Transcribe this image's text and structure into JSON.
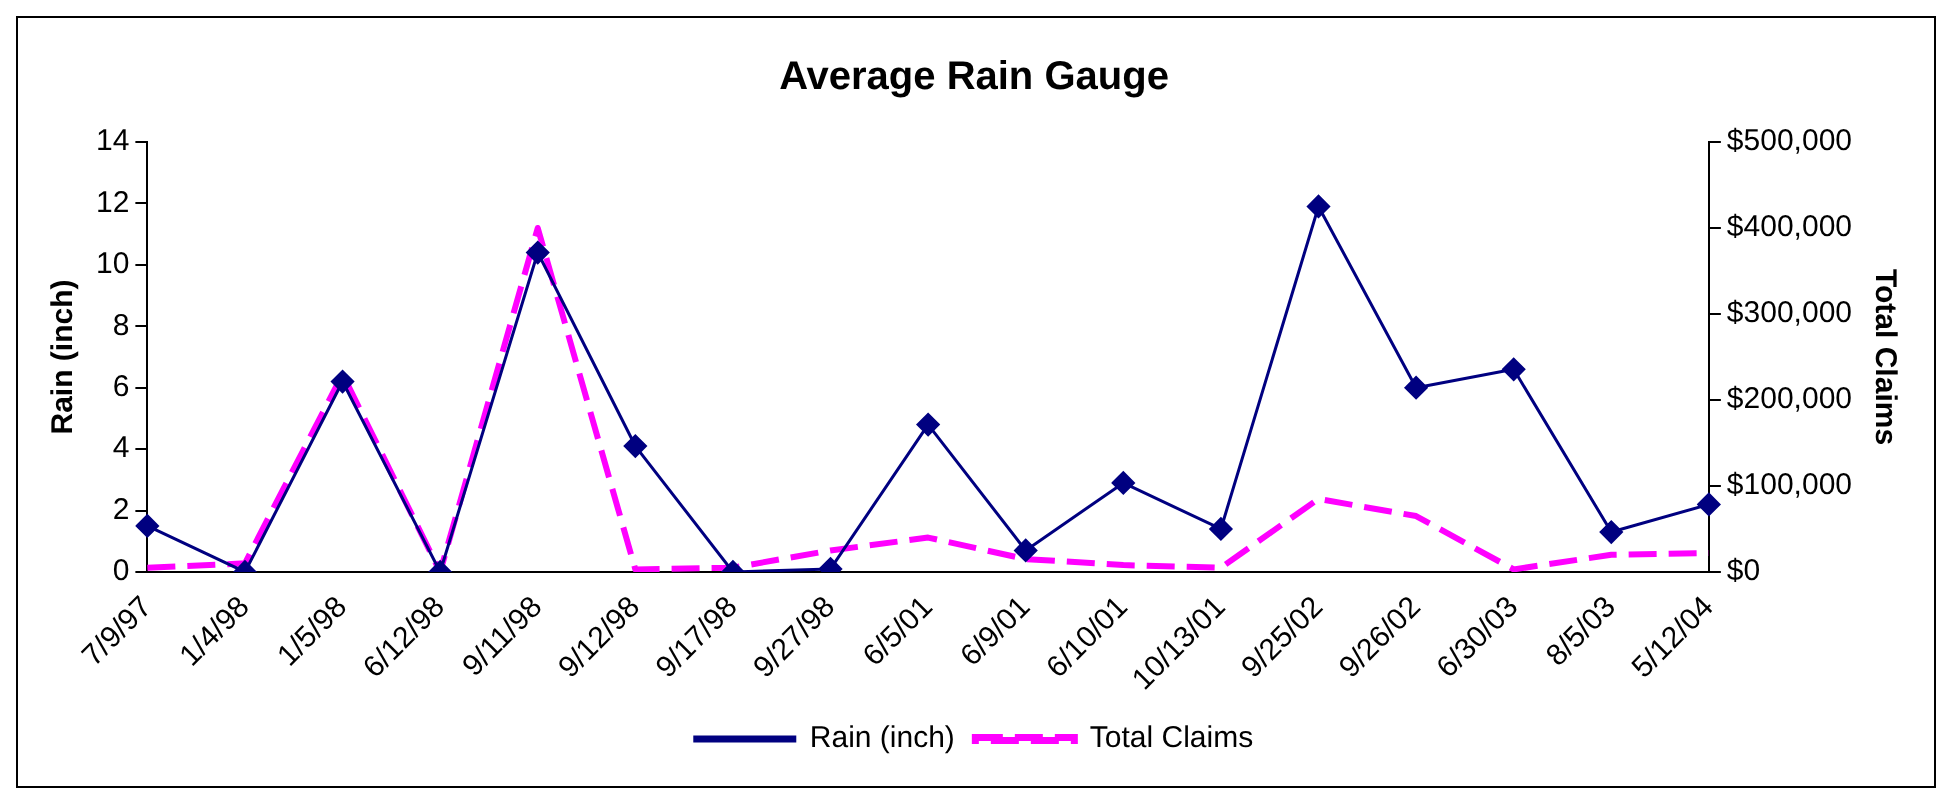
{
  "chart_data": {
    "type": "line",
    "title": "Average Rain Gauge",
    "ylabel": "Rain (inch)",
    "y2label": "Total Claims",
    "categories": [
      "7/9/97",
      "1/4/98",
      "1/5/98",
      "6/12/98",
      "9/11/98",
      "9/12/98",
      "9/17/98",
      "9/27/98",
      "6/5/01",
      "6/9/01",
      "6/10/01",
      "10/13/01",
      "9/25/02",
      "9/26/02",
      "6/30/03",
      "8/5/03",
      "5/12/04"
    ],
    "series": [
      {
        "name": "Rain (inch)",
        "color": "#000080",
        "marker": "diamond",
        "line_style": "solid",
        "values": [
          1.5,
          0,
          6.2,
          0,
          10.4,
          4.1,
          0,
          0.1,
          4.8,
          0.7,
          2.9,
          1.4,
          11.9,
          6.0,
          6.6,
          1.3,
          2.2
        ]
      },
      {
        "name": "Total Claims",
        "color": "#ff00ff",
        "marker": "none",
        "line_style": "dashed",
        "axis": "y2",
        "values": [
          5000,
          10000,
          230000,
          0,
          400000,
          3000,
          5000,
          25000,
          40000,
          15000,
          8000,
          5000,
          85000,
          65000,
          3000,
          20000,
          22000
        ]
      }
    ],
    "ylim": [
      0,
      14
    ],
    "yticks": [
      0,
      2,
      4,
      6,
      8,
      10,
      12,
      14
    ],
    "y2lim": [
      0,
      500000
    ],
    "y2ticks": [
      {
        "value": 0,
        "label": "$0"
      },
      {
        "value": 100000,
        "label": "$100,000"
      },
      {
        "value": 200000,
        "label": "$200,000"
      },
      {
        "value": 300000,
        "label": "$300,000"
      },
      {
        "value": 400000,
        "label": "$400,000"
      },
      {
        "value": 500000,
        "label": "$500,000"
      }
    ],
    "grid": false,
    "legend": "bottom"
  }
}
